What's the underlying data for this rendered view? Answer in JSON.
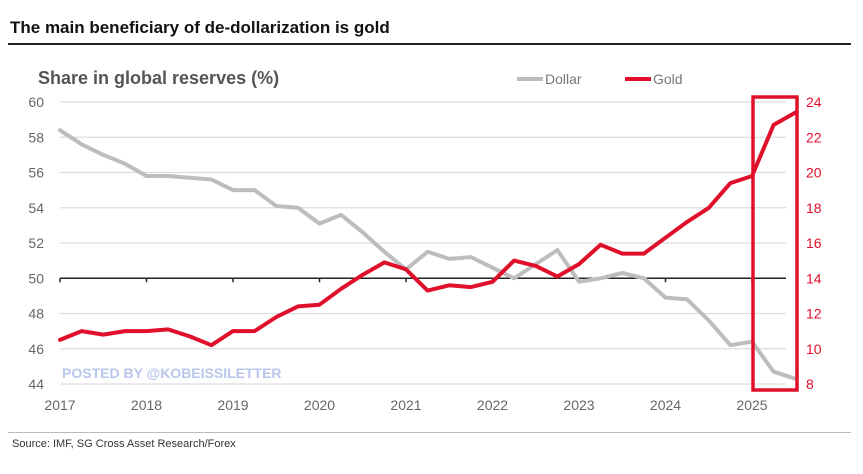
{
  "title": "The main beneficiary of de-dollarization is gold",
  "source": "Source: IMF, SG Cross Asset Research/Forex",
  "watermark": "POSTED BY @KOBEISSILETTER",
  "chart_data": {
    "type": "line",
    "subtitle": "Share in global reserves (%)",
    "x_ticks": [
      "2017",
      "2018",
      "2019",
      "2020",
      "2021",
      "2022",
      "2023",
      "2024",
      "2025"
    ],
    "x_range": [
      2017,
      2025.6
    ],
    "y_left": {
      "range": [
        44,
        60
      ],
      "ticks": [
        44,
        46,
        48,
        50,
        52,
        54,
        56,
        58,
        60
      ]
    },
    "y_right": {
      "range": [
        8,
        24
      ],
      "ticks": [
        8,
        10,
        12,
        14,
        16,
        18,
        20,
        22,
        24
      ],
      "color": "#e0102a"
    },
    "grid": true,
    "legend": {
      "position": "top-right",
      "entries": [
        "Dollar",
        "Gold"
      ]
    },
    "x": [
      2017,
      2017.25,
      2017.5,
      2017.75,
      2018,
      2018.25,
      2018.5,
      2018.75,
      2019,
      2019.25,
      2019.5,
      2019.75,
      2020,
      2020.25,
      2020.5,
      2020.75,
      2021,
      2021.25,
      2021.5,
      2021.75,
      2022,
      2022.25,
      2022.5,
      2022.75,
      2023,
      2023.25,
      2023.5,
      2023.75,
      2024,
      2024.25,
      2024.5,
      2024.75,
      2025,
      2025.25,
      2025.5
    ],
    "series": [
      {
        "name": "Dollar",
        "axis": "left",
        "color": "#bdbdbd",
        "values": [
          58.4,
          57.6,
          57.0,
          56.5,
          55.8,
          55.8,
          55.7,
          55.6,
          55.0,
          55.0,
          54.1,
          54.0,
          53.1,
          53.6,
          52.6,
          51.5,
          50.5,
          51.5,
          51.1,
          51.2,
          50.6,
          50.0,
          50.8,
          51.6,
          49.8,
          50.0,
          50.3,
          50.0,
          48.9,
          48.8,
          47.6,
          46.2,
          46.4,
          44.7,
          44.3
        ]
      },
      {
        "name": "Gold",
        "axis": "right",
        "color": "#e0102a",
        "values": [
          10.5,
          11.0,
          10.8,
          11.0,
          11.0,
          11.1,
          10.7,
          10.2,
          11.0,
          11.0,
          11.8,
          12.4,
          12.5,
          13.4,
          14.2,
          14.9,
          14.5,
          13.3,
          13.6,
          13.5,
          13.8,
          15.0,
          14.7,
          14.1,
          14.8,
          15.9,
          15.4,
          15.4,
          16.3,
          17.2,
          18.0,
          19.4,
          19.8,
          22.7,
          23.4
        ]
      }
    ],
    "highlight": {
      "from": 2025,
      "to": 2025.6,
      "color": "#e0102a"
    }
  }
}
